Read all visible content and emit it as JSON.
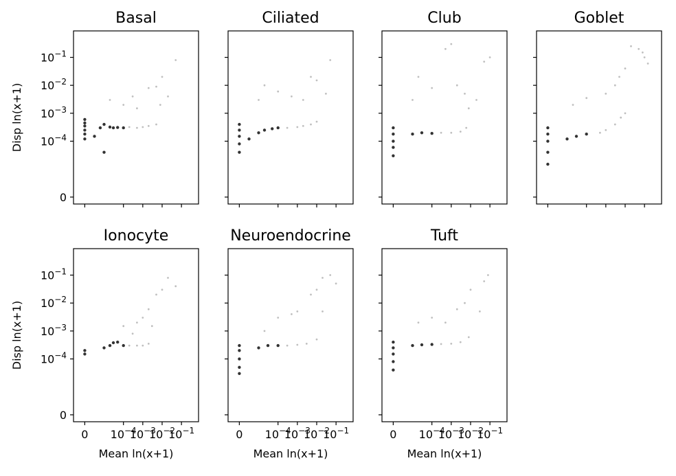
{
  "chart_data": {
    "type": "scatter",
    "layout": {
      "rows": 2,
      "cols": 4,
      "sharex": true,
      "sharey": true
    },
    "xscale": "symlog",
    "yscale": "symlog",
    "xlim": [
      0,
      0.2
    ],
    "ylim": [
      0,
      0.5
    ],
    "xlabel": "Mean ln(x+1)",
    "ylabel": "Disp ln(x+1)",
    "x_ticks": [
      {
        "value": 0,
        "base": "0",
        "exp": ""
      },
      {
        "value": 0.0001,
        "base": "10",
        "exp": "−4"
      },
      {
        "value": 0.001,
        "base": "10",
        "exp": "−3"
      },
      {
        "value": 0.01,
        "base": "10",
        "exp": "−2"
      },
      {
        "value": 0.1,
        "base": "10",
        "exp": "−1"
      }
    ],
    "y_ticks": [
      {
        "value": 0,
        "base": "0",
        "exp": ""
      },
      {
        "value": 0.0001,
        "base": "10",
        "exp": "−4"
      },
      {
        "value": 0.001,
        "base": "10",
        "exp": "−3"
      },
      {
        "value": 0.01,
        "base": "10",
        "exp": "−2"
      },
      {
        "value": 0.1,
        "base": "10",
        "exp": "−1"
      }
    ],
    "marker_color": "#000000",
    "panels": [
      {
        "title": "Basal",
        "points": [
          [
            0,
            0.00012
          ],
          [
            0,
            0.00018
          ],
          [
            0,
            0.00025
          ],
          [
            0,
            0.00035
          ],
          [
            0,
            0.00045
          ],
          [
            0,
            0.0006
          ],
          [
            5e-06,
            0.00015
          ],
          [
            8e-06,
            0.0003
          ],
          [
            1e-05,
            0.0004
          ],
          [
            2e-05,
            0.00032
          ],
          [
            3e-05,
            0.0003
          ],
          [
            5e-05,
            0.00031
          ],
          [
            0.0001,
            0.0003
          ],
          [
            0.0002,
            0.00032
          ],
          [
            0.0005,
            0.0003
          ],
          [
            0.001,
            0.00032
          ],
          [
            0.002,
            0.00035
          ],
          [
            0.005,
            0.0004
          ],
          [
            2e-05,
            0.003
          ],
          [
            0.0001,
            0.002
          ],
          [
            0.0005,
            0.0015
          ],
          [
            0.002,
            0.008
          ],
          [
            0.005,
            0.009
          ],
          [
            0.01,
            0.02
          ],
          [
            0.05,
            0.08
          ],
          [
            0.02,
            0.004
          ],
          [
            0.008,
            0.002
          ],
          [
            0.0003,
            0.004
          ],
          [
            1e-05,
            4e-05
          ]
        ]
      },
      {
        "title": "Ciliated",
        "points": [
          [
            0,
            4e-05
          ],
          [
            0,
            8e-05
          ],
          [
            0,
            0.00015
          ],
          [
            0,
            0.00025
          ],
          [
            0,
            0.0004
          ],
          [
            5e-06,
            0.00012
          ],
          [
            1e-05,
            0.0002
          ],
          [
            2e-05,
            0.00025
          ],
          [
            5e-05,
            0.00028
          ],
          [
            0.0001,
            0.0003
          ],
          [
            0.0003,
            0.0003
          ],
          [
            0.001,
            0.00032
          ],
          [
            0.002,
            0.00035
          ],
          [
            0.005,
            0.0004
          ],
          [
            0.01,
            0.0005
          ],
          [
            2e-05,
            0.01
          ],
          [
            0.0001,
            0.006
          ],
          [
            0.0005,
            0.004
          ],
          [
            0.002,
            0.003
          ],
          [
            0.005,
            0.02
          ],
          [
            0.01,
            0.015
          ],
          [
            0.05,
            0.08
          ],
          [
            0.03,
            0.005
          ],
          [
            1e-05,
            0.003
          ]
        ]
      },
      {
        "title": "Club",
        "points": [
          [
            0,
            3e-05
          ],
          [
            0,
            6e-05
          ],
          [
            0,
            0.0001
          ],
          [
            0,
            0.00018
          ],
          [
            0,
            0.0003
          ],
          [
            1e-05,
            0.00018
          ],
          [
            3e-05,
            0.0002
          ],
          [
            0.0001,
            0.00019
          ],
          [
            0.0003,
            0.0002
          ],
          [
            0.001,
            0.0002
          ],
          [
            0.003,
            0.00022
          ],
          [
            0.006,
            0.0003
          ],
          [
            2e-05,
            0.02
          ],
          [
            0.0001,
            0.008
          ],
          [
            0.0005,
            0.2
          ],
          [
            0.001,
            0.3
          ],
          [
            0.002,
            0.01
          ],
          [
            0.005,
            0.005
          ],
          [
            0.02,
            0.003
          ],
          [
            0.05,
            0.07
          ],
          [
            0.1,
            0.1
          ],
          [
            1e-05,
            0.003
          ],
          [
            0.008,
            0.0015
          ]
        ]
      },
      {
        "title": "Goblet",
        "points": [
          [
            0,
            1.5e-05
          ],
          [
            0,
            4e-05
          ],
          [
            0,
            0.0001
          ],
          [
            0,
            0.00018
          ],
          [
            0,
            0.0003
          ],
          [
            1e-05,
            0.00012
          ],
          [
            3e-05,
            0.00015
          ],
          [
            0.0001,
            0.00018
          ],
          [
            0.0005,
            0.0002
          ],
          [
            0.001,
            0.00025
          ],
          [
            0.003,
            0.0004
          ],
          [
            0.006,
            0.0007
          ],
          [
            0.01,
            0.001
          ],
          [
            2e-05,
            0.002
          ],
          [
            0.0001,
            0.0035
          ],
          [
            0.001,
            0.005
          ],
          [
            0.003,
            0.01
          ],
          [
            0.01,
            0.04
          ],
          [
            0.02,
            0.25
          ],
          [
            0.05,
            0.2
          ],
          [
            0.1,
            0.1
          ],
          [
            0.15,
            0.06
          ],
          [
            0.08,
            0.15
          ],
          [
            0.005,
            0.02
          ]
        ]
      },
      {
        "title": "Ionocyte",
        "points": [
          [
            0,
            0.00015
          ],
          [
            0,
            0.0002
          ],
          [
            1e-05,
            0.00025
          ],
          [
            2e-05,
            0.0003
          ],
          [
            3e-05,
            0.00038
          ],
          [
            5e-05,
            0.0004
          ],
          [
            0.0001,
            0.0003
          ],
          [
            0.0002,
            0.0003
          ],
          [
            0.0005,
            0.0003
          ],
          [
            0.001,
            0.0003
          ],
          [
            0.002,
            0.00035
          ],
          [
            0.0001,
            0.0015
          ],
          [
            0.0005,
            0.002
          ],
          [
            0.001,
            0.003
          ],
          [
            0.002,
            0.006
          ],
          [
            0.005,
            0.02
          ],
          [
            0.01,
            0.03
          ],
          [
            0.02,
            0.08
          ],
          [
            0.05,
            0.04
          ],
          [
            0.003,
            0.0015
          ],
          [
            0.0003,
            0.0008
          ]
        ]
      },
      {
        "title": "Neuroendocrine",
        "points": [
          [
            0,
            3e-05
          ],
          [
            0,
            5e-05
          ],
          [
            0,
            0.0001
          ],
          [
            0,
            0.0002
          ],
          [
            0,
            0.0003
          ],
          [
            1e-05,
            0.00025
          ],
          [
            3e-05,
            0.0003
          ],
          [
            0.0001,
            0.0003
          ],
          [
            0.0003,
            0.0003
          ],
          [
            0.001,
            0.00032
          ],
          [
            0.003,
            0.00035
          ],
          [
            0.01,
            0.0005
          ],
          [
            2e-05,
            0.001
          ],
          [
            0.0001,
            0.003
          ],
          [
            0.0005,
            0.004
          ],
          [
            0.001,
            0.005
          ],
          [
            0.005,
            0.02
          ],
          [
            0.01,
            0.03
          ],
          [
            0.02,
            0.08
          ],
          [
            0.05,
            0.1
          ],
          [
            0.1,
            0.05
          ],
          [
            0.02,
            0.005
          ]
        ]
      },
      {
        "title": "Tuft",
        "points": [
          [
            0,
            4e-05
          ],
          [
            0,
            8e-05
          ],
          [
            0,
            0.00015
          ],
          [
            0,
            0.00025
          ],
          [
            0,
            0.0004
          ],
          [
            1e-05,
            0.0003
          ],
          [
            3e-05,
            0.00032
          ],
          [
            0.0001,
            0.00033
          ],
          [
            0.0003,
            0.00034
          ],
          [
            0.001,
            0.00035
          ],
          [
            0.003,
            0.0004
          ],
          [
            0.008,
            0.0006
          ],
          [
            2e-05,
            0.002
          ],
          [
            0.0001,
            0.003
          ],
          [
            0.0005,
            0.002
          ],
          [
            0.002,
            0.006
          ],
          [
            0.005,
            0.01
          ],
          [
            0.01,
            0.03
          ],
          [
            0.03,
            0.005
          ],
          [
            0.05,
            0.06
          ],
          [
            0.08,
            0.1
          ]
        ]
      }
    ]
  }
}
